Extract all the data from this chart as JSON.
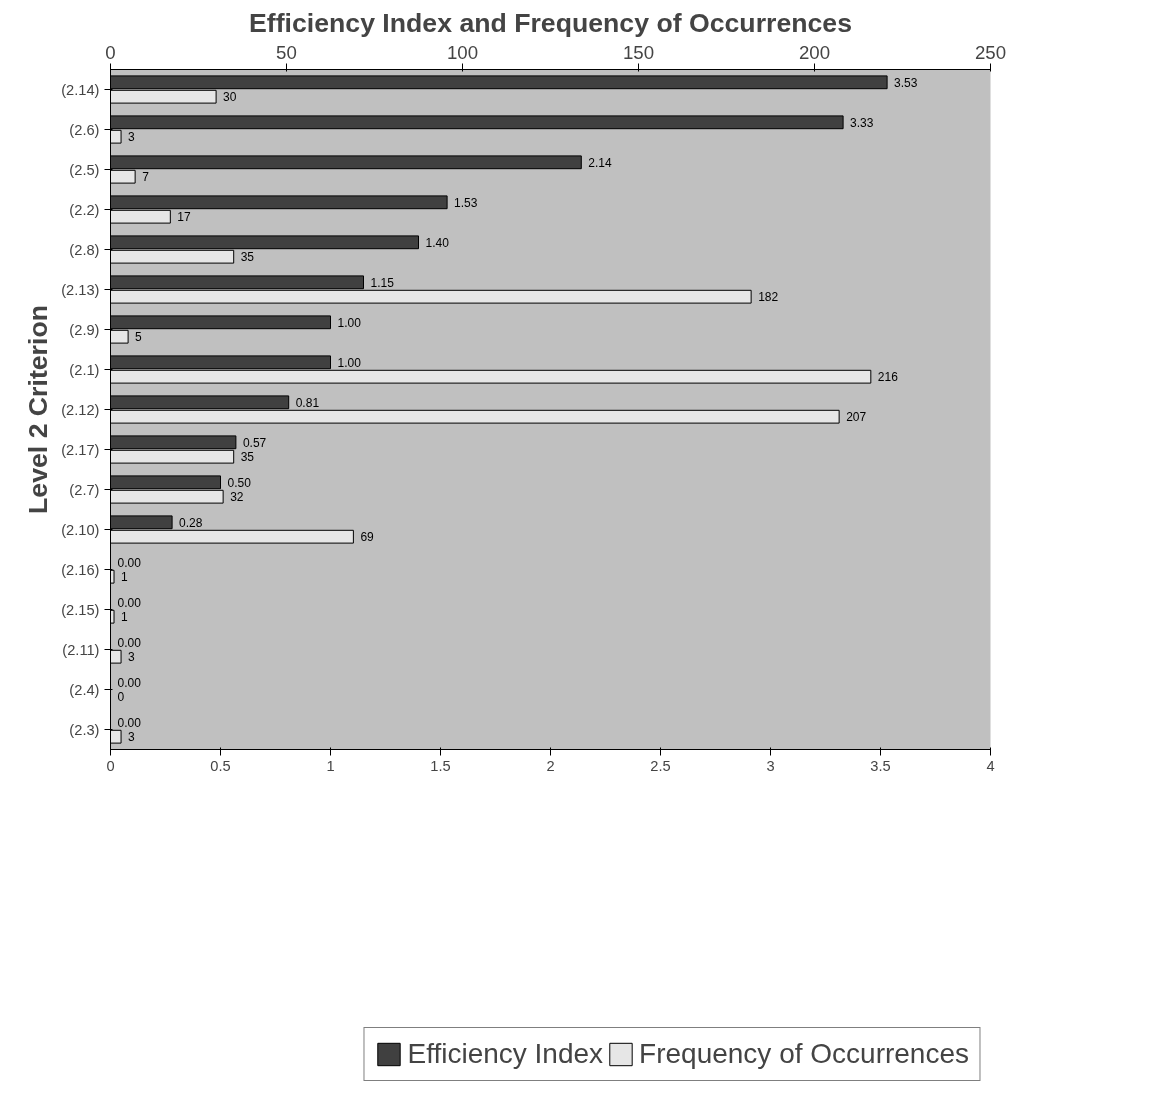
{
  "chart_data": {
    "type": "bar",
    "orientation": "horizontal",
    "title": "Efficiency Index and Frequency of Occurrences",
    "ylabel": "Level 2 Criterion",
    "categories": [
      "(2.14)",
      "(2.6)",
      "(2.5)",
      "(2.2)",
      "(2.8)",
      "(2.13)",
      "(2.9)",
      "(2.1)",
      "(2.12)",
      "(2.17)",
      "(2.7)",
      "(2.10)",
      "(2.16)",
      "(2.15)",
      "(2.11)",
      "(2.4)",
      "(2.3)"
    ],
    "series": [
      {
        "name": "Efficiency Index",
        "color": "#404040",
        "values": [
          3.53,
          3.33,
          2.14,
          1.53,
          1.4,
          1.15,
          1.0,
          1.0,
          0.81,
          0.57,
          0.5,
          0.28,
          0,
          0,
          0,
          0,
          0
        ],
        "value_labels": [
          "3.53",
          "3.33",
          "2.14",
          "1.53",
          "1.40",
          "1.15",
          "1.00",
          "1.00",
          "0.81",
          "0.57",
          "0.50",
          "0.28",
          "0.00",
          "0.00",
          "0.00",
          "0.00",
          "0.00"
        ]
      },
      {
        "name": "Frequency of Occurrences",
        "color": "#e6e6e6",
        "axis": "x2",
        "values": [
          30,
          3,
          7,
          17,
          35,
          182,
          5,
          216,
          207,
          35,
          32,
          69,
          1,
          1,
          3,
          0,
          3
        ],
        "value_labels": [
          "30",
          "3",
          "7",
          "17",
          "35",
          "182",
          "5",
          "216",
          "207",
          "35",
          "32",
          "69",
          "1",
          "1",
          "3",
          "0",
          "3"
        ]
      }
    ],
    "xlim": [
      0,
      4
    ],
    "xticks": [
      0,
      {
        "value": 0.5,
        "label": "0.5"
      },
      1,
      {
        "value": 1.5,
        "label": "1.5"
      },
      2,
      {
        "value": 2.5,
        "label": "2.5"
      },
      3,
      {
        "value": 3.5,
        "label": "3.5"
      },
      4
    ],
    "x2lim": [
      0,
      250
    ],
    "x2ticks": [
      0,
      50,
      100,
      150,
      200,
      250
    ],
    "grid": false,
    "legend": "bottom"
  }
}
